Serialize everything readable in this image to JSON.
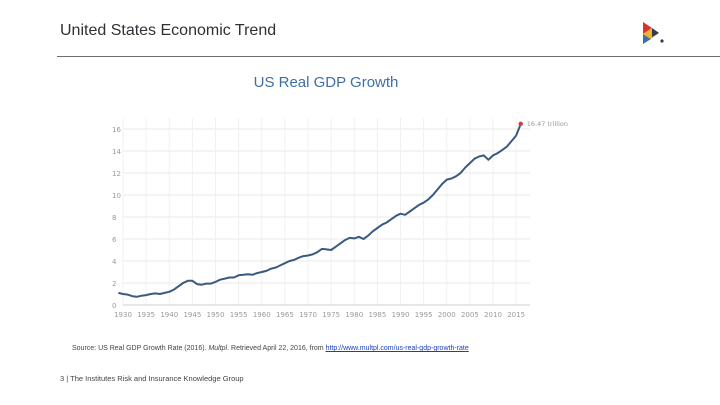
{
  "header": {
    "title": "United States Economic Trend"
  },
  "colors": {
    "accent": "#3f6fa6",
    "series": "#3a5a80",
    "endpoint": "#d23c3c"
  },
  "chart_data": {
    "type": "line",
    "title": "US Real GDP Growth",
    "xlabel": "",
    "ylabel": "",
    "xlim": [
      1930,
      2018
    ],
    "ylim": [
      0,
      17
    ],
    "grid": true,
    "x_ticks": [
      "1930",
      "1935",
      "1940",
      "1945",
      "1950",
      "1955",
      "1960",
      "1965",
      "1970",
      "1975",
      "1980",
      "1985",
      "1990",
      "1995",
      "2000",
      "2005",
      "2010",
      "2015"
    ],
    "y_ticks": [
      "0",
      "2",
      "4",
      "6",
      "8",
      "10",
      "12",
      "14",
      "16"
    ],
    "end_label": "16.47 trillion",
    "series": [
      {
        "x": [
          1929,
          1930,
          1931,
          1932,
          1933,
          1934,
          1935,
          1936,
          1937,
          1938,
          1939,
          1940,
          1941,
          1942,
          1943,
          1944,
          1945,
          1946,
          1947,
          1948,
          1949,
          1950,
          1951,
          1952,
          1953,
          1954,
          1955,
          1956,
          1957,
          1958,
          1959,
          1960,
          1961,
          1962,
          1963,
          1964,
          1965,
          1966,
          1967,
          1968,
          1969,
          1970,
          1971,
          1972,
          1973,
          1974,
          1975,
          1976,
          1977,
          1978,
          1979,
          1980,
          1981,
          1982,
          1983,
          1984,
          1985,
          1986,
          1987,
          1988,
          1989,
          1990,
          1991,
          1992,
          1993,
          1994,
          1995,
          1996,
          1997,
          1998,
          1999,
          2000,
          2001,
          2002,
          2003,
          2004,
          2005,
          2006,
          2007,
          2008,
          2009,
          2010,
          2011,
          2012,
          2013,
          2014,
          2015,
          2016
        ],
        "y": [
          1.1,
          1.0,
          0.95,
          0.8,
          0.75,
          0.85,
          0.9,
          1.0,
          1.05,
          1.0,
          1.1,
          1.2,
          1.4,
          1.7,
          2.0,
          2.2,
          2.2,
          1.9,
          1.85,
          1.95,
          1.95,
          2.1,
          2.3,
          2.4,
          2.5,
          2.5,
          2.7,
          2.75,
          2.8,
          2.75,
          2.9,
          3.0,
          3.1,
          3.3,
          3.4,
          3.6,
          3.8,
          4.0,
          4.1,
          4.3,
          4.45,
          4.5,
          4.6,
          4.8,
          5.1,
          5.05,
          5.0,
          5.3,
          5.6,
          5.9,
          6.1,
          6.05,
          6.2,
          6.0,
          6.3,
          6.7,
          7.0,
          7.3,
          7.5,
          7.8,
          8.1,
          8.3,
          8.2,
          8.5,
          8.8,
          9.1,
          9.3,
          9.6,
          10.0,
          10.5,
          11.0,
          11.4,
          11.5,
          11.7,
          12.0,
          12.5,
          12.9,
          13.3,
          13.5,
          13.6,
          13.2,
          13.6,
          13.8,
          14.1,
          14.4,
          14.9,
          15.4,
          16.47
        ]
      }
    ]
  },
  "source": {
    "prefix": "Source: US Real GDP Growth Rate (2016). ",
    "cite_title": "Multpl",
    "middle": ". Retrieved April 22, 2016, from ",
    "url": "http://www.multpl.com/us-real-gdp-growth-rate"
  },
  "footer": {
    "text": "3 | The Institutes Risk and Insurance Knowledge Group"
  }
}
